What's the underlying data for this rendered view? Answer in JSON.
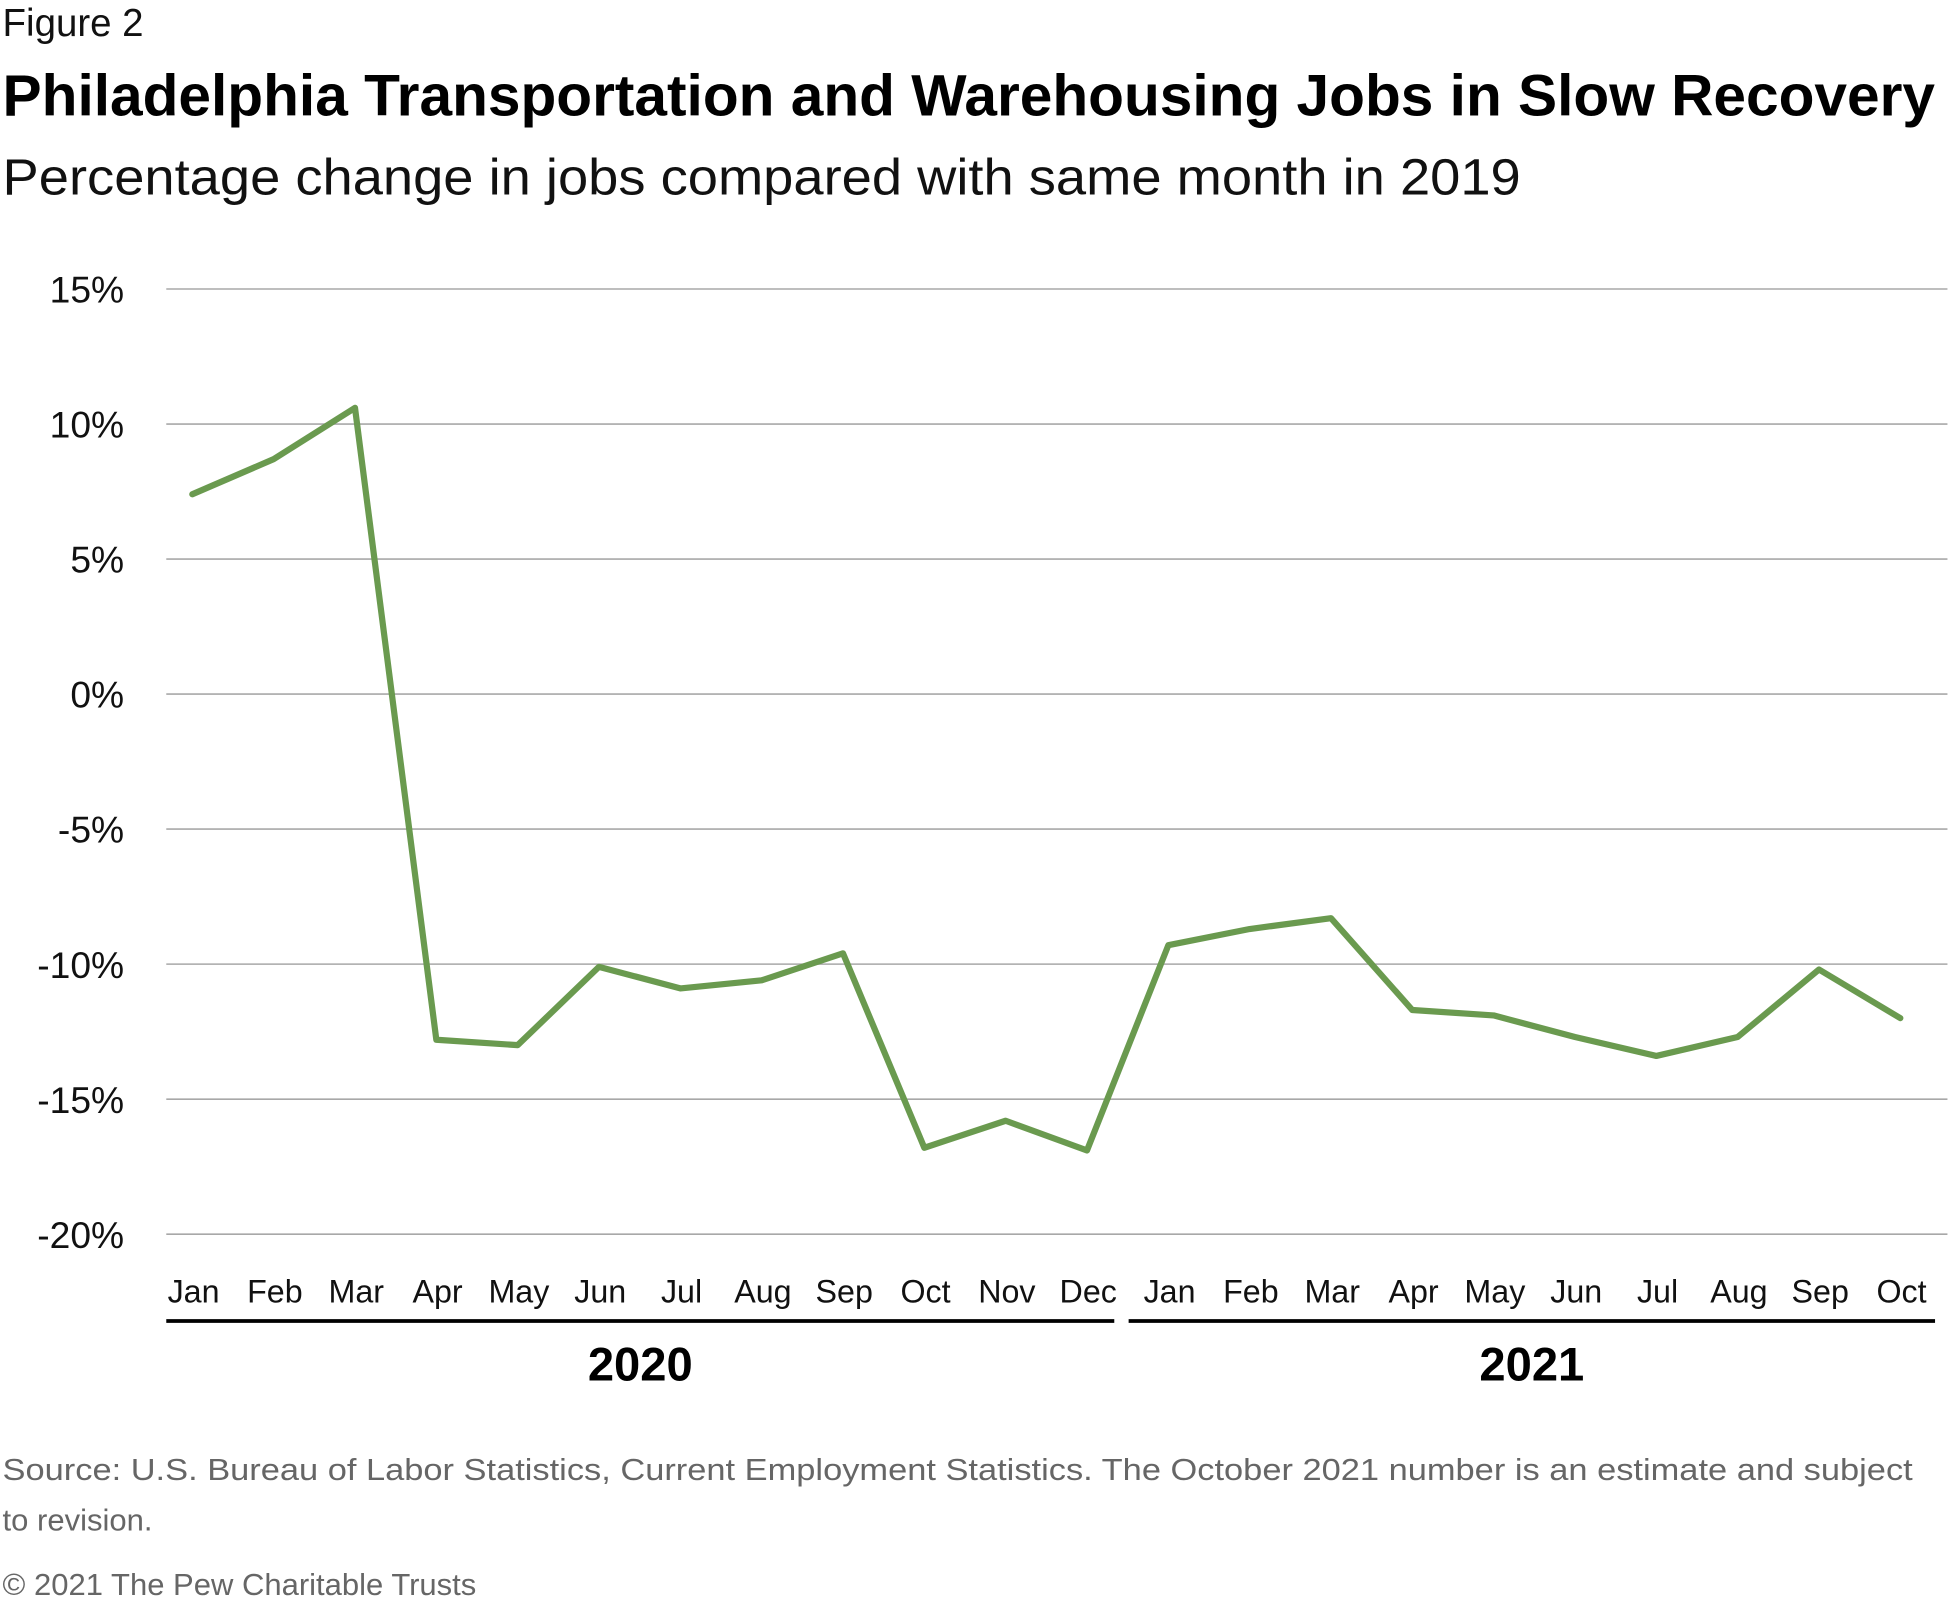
{
  "figure_label": "Figure 2",
  "chart_data": {
    "type": "line",
    "title": "Philadelphia Transportation and Warehousing Jobs in Slow Recovery",
    "subtitle": "Percentage change in jobs compared with same month in 2019",
    "xlabel": "",
    "ylabel": "",
    "ylim": [
      -20,
      15
    ],
    "yticks": [
      "15%",
      "10%",
      "5%",
      "0%",
      "-5%",
      "-10%",
      "-15%",
      "-20%"
    ],
    "ytick_values": [
      15,
      10,
      5,
      0,
      -5,
      -10,
      -15,
      -20
    ],
    "grid": true,
    "line_color": "#6a9a4f",
    "categories": [
      "Jan",
      "Feb",
      "Mar",
      "Apr",
      "May",
      "Jun",
      "Jul",
      "Aug",
      "Sep",
      "Oct",
      "Nov",
      "Dec",
      "Jan",
      "Feb",
      "Mar",
      "Apr",
      "May",
      "Jun",
      "Jul",
      "Aug",
      "Sep",
      "Oct"
    ],
    "year_groups": [
      {
        "label": "2020",
        "start": 0,
        "end": 11
      },
      {
        "label": "2021",
        "start": 12,
        "end": 21
      }
    ],
    "series": [
      {
        "values": [
          7.4,
          8.7,
          10.6,
          -12.8,
          -13.0,
          -10.1,
          -10.9,
          -10.6,
          -9.6,
          -16.8,
          -15.8,
          -16.9,
          -9.3,
          -8.7,
          -8.3,
          -11.7,
          -11.9,
          -12.7,
          -13.4,
          -12.7,
          -10.2,
          -12.0
        ]
      }
    ]
  },
  "source": "Source: U.S. Bureau of Labor Statistics, Current Employment Statistics. The October 2021 number is an estimate and subject",
  "source_line2": "to revision.",
  "copyright": "© 2021 The Pew Charitable Trusts"
}
